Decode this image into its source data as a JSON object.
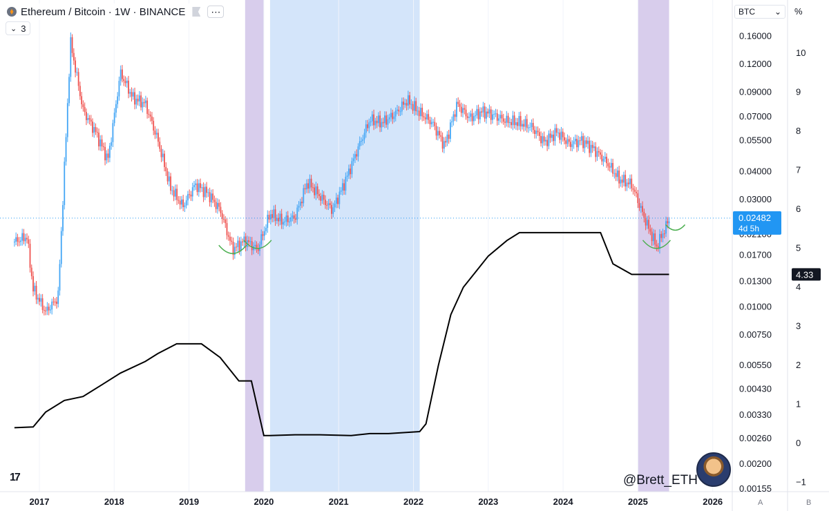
{
  "header": {
    "symbol_title": "Ethereum / Bitcoin · 1W · BINANCE",
    "more_icon": "dots-icon",
    "flag_icon": "flag-icon",
    "indicator_count": "3"
  },
  "price_scale": {
    "currency": "BTC",
    "percent_label": "%",
    "ticks": [
      "0.16000",
      "0.12000",
      "0.09000",
      "0.07000",
      "0.05500",
      "0.04000",
      "0.03000",
      "0.02100",
      "0.01700",
      "0.01300",
      "0.01000",
      "0.00750",
      "0.00550",
      "0.00430",
      "0.00330",
      "0.00260",
      "0.00200",
      "0.00155"
    ],
    "current_price": "0.02482",
    "current_countdown": "4d 5h",
    "current_price_color": "#2196f3"
  },
  "indicator_scale": {
    "ticks": [
      "10",
      "9",
      "8",
      "7",
      "6",
      "5",
      "4",
      "3",
      "2",
      "1",
      "0",
      "−1"
    ],
    "current_value": "4.33"
  },
  "time_axis": {
    "labels": [
      "2017",
      "2018",
      "2019",
      "2020",
      "2021",
      "2022",
      "2023",
      "2024",
      "2025",
      "2026"
    ]
  },
  "axis_buttons": {
    "a": "A",
    "b": "B"
  },
  "watermark": "@Brett_ETH",
  "colors": {
    "up": "#42a5f5",
    "down": "#ef5350",
    "purple_band": "#d1c4e9",
    "blue_band": "#cfe2f9",
    "curve": "#4caf50",
    "indicator": "#000000"
  },
  "chart_data": [
    {
      "type": "candlestick",
      "y_scale": "log",
      "ylim": [
        0.00155,
        0.165
      ],
      "x": [
        "2016-09",
        "2016-11",
        "2016-12",
        "2017-02",
        "2017-04",
        "2017-06",
        "2017-08",
        "2017-10",
        "2017-12",
        "2018-02",
        "2018-04",
        "2018-06",
        "2018-08",
        "2018-10",
        "2018-12",
        "2019-02",
        "2019-04",
        "2019-06",
        "2019-08",
        "2019-10",
        "2019-12",
        "2020-02",
        "2020-04",
        "2020-06",
        "2020-08",
        "2020-10",
        "2020-12",
        "2021-02",
        "2021-04",
        "2021-06",
        "2021-08",
        "2021-10",
        "2021-12",
        "2022-02",
        "2022-04",
        "2022-06",
        "2022-08",
        "2022-10",
        "2022-12",
        "2023-02",
        "2023-04",
        "2023-06",
        "2023-08",
        "2023-10",
        "2023-12",
        "2024-02",
        "2024-04",
        "2024-06",
        "2024-08",
        "2024-10",
        "2024-12",
        "2025-02",
        "2025-04",
        "2025-06"
      ],
      "values": [
        0.0195,
        0.0205,
        0.012,
        0.0095,
        0.011,
        0.15,
        0.075,
        0.06,
        0.045,
        0.11,
        0.085,
        0.08,
        0.055,
        0.034,
        0.028,
        0.035,
        0.032,
        0.027,
        0.018,
        0.0198,
        0.018,
        0.026,
        0.024,
        0.025,
        0.036,
        0.031,
        0.027,
        0.036,
        0.05,
        0.068,
        0.066,
        0.072,
        0.083,
        0.073,
        0.066,
        0.052,
        0.08,
        0.069,
        0.074,
        0.071,
        0.067,
        0.066,
        0.063,
        0.054,
        0.06,
        0.053,
        0.055,
        0.05,
        0.044,
        0.037,
        0.035,
        0.025,
        0.0185,
        0.0245
      ],
      "current": 0.02482,
      "highlights": [
        {
          "start": "2019-10",
          "end": "2020-01",
          "color": "purple"
        },
        {
          "start": "2020-02",
          "end": "2022-02",
          "color": "blue"
        },
        {
          "start": "2025-01",
          "end": "2025-06",
          "color": "purple"
        }
      ]
    },
    {
      "type": "line",
      "ylim": [
        -1,
        10
      ],
      "x": [
        "2016-09",
        "2016-12",
        "2017-02",
        "2017-05",
        "2017-08",
        "2017-11",
        "2018-02",
        "2018-06",
        "2018-08",
        "2018-11",
        "2019-03",
        "2019-06",
        "2019-09",
        "2019-11",
        "2020-01",
        "2020-02",
        "2020-06",
        "2020-10",
        "2021-03",
        "2021-06",
        "2021-09",
        "2022-02",
        "2022-03",
        "2022-05",
        "2022-07",
        "2022-09",
        "2022-11",
        "2023-01",
        "2023-04",
        "2023-06",
        "2023-08",
        "2024-03",
        "2024-07",
        "2024-09",
        "2024-12",
        "2025-06"
      ],
      "values": [
        0.4,
        0.42,
        0.8,
        1.1,
        1.2,
        1.5,
        1.8,
        2.1,
        2.3,
        2.55,
        2.55,
        2.2,
        1.6,
        1.6,
        0.2,
        0.2,
        0.22,
        0.22,
        0.2,
        0.25,
        0.25,
        0.3,
        0.5,
        2.0,
        3.3,
        4.0,
        4.4,
        4.8,
        5.2,
        5.4,
        5.4,
        5.4,
        5.4,
        4.6,
        4.33,
        4.33
      ],
      "current": 4.33
    }
  ]
}
